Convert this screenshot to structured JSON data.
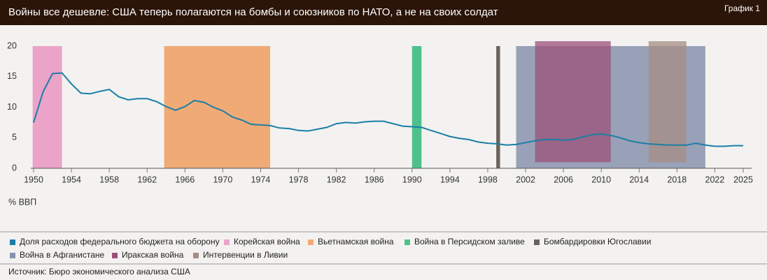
{
  "chart_data": {
    "type": "line",
    "title": "Войны все дешевле: США теперь полагаются на бомбы и союзников по НАТО, а не на своих солдат",
    "badge": "График 1",
    "y_label": "% ВВП",
    "source": "Источник: Бюро экономического анализа США",
    "xlim": [
      1950,
      2025
    ],
    "ylim": [
      0,
      20
    ],
    "xticks": [
      1950,
      1954,
      1958,
      1962,
      1966,
      1970,
      1974,
      1978,
      1982,
      1986,
      1990,
      1994,
      1998,
      2002,
      2006,
      2010,
      2014,
      2018,
      2022,
      2025
    ],
    "yticks": [
      0,
      5,
      10,
      15,
      20
    ],
    "series": [
      {
        "name": "Доля расходов федерального бюджета на оборону",
        "color": "#1b7ea6",
        "x": [
          1950,
          1951,
          1952,
          1953,
          1954,
          1955,
          1956,
          1957,
          1958,
          1959,
          1960,
          1961,
          1962,
          1963,
          1964,
          1965,
          1966,
          1967,
          1968,
          1969,
          1970,
          1971,
          1972,
          1973,
          1974,
          1975,
          1976,
          1977,
          1978,
          1979,
          1980,
          1981,
          1982,
          1983,
          1984,
          1985,
          1986,
          1987,
          1988,
          1989,
          1990,
          1991,
          1992,
          1993,
          1994,
          1995,
          1996,
          1997,
          1998,
          1999,
          2000,
          2001,
          2002,
          2003,
          2004,
          2005,
          2006,
          2007,
          2008,
          2009,
          2010,
          2011,
          2012,
          2013,
          2014,
          2015,
          2016,
          2017,
          2018,
          2019,
          2020,
          2021,
          2022,
          2023,
          2024,
          2025
        ],
        "values": [
          7.5,
          12.5,
          15.5,
          15.6,
          13.8,
          12.3,
          12.2,
          12.6,
          12.9,
          11.7,
          11.2,
          11.4,
          11.4,
          10.9,
          10.1,
          9.5,
          10.1,
          11.1,
          10.8,
          10.0,
          9.4,
          8.4,
          7.9,
          7.2,
          7.1,
          7.0,
          6.6,
          6.5,
          6.2,
          6.1,
          6.4,
          6.7,
          7.3,
          7.5,
          7.4,
          7.6,
          7.7,
          7.7,
          7.3,
          6.9,
          6.8,
          6.7,
          6.2,
          5.7,
          5.2,
          4.9,
          4.7,
          4.3,
          4.1,
          4.0,
          3.8,
          3.9,
          4.2,
          4.5,
          4.7,
          4.7,
          4.6,
          4.7,
          5.1,
          5.5,
          5.6,
          5.4,
          5.0,
          4.5,
          4.2,
          4.0,
          3.9,
          3.8,
          3.8,
          3.8,
          4.1,
          3.8,
          3.6,
          3.6,
          3.7,
          3.7
        ]
      }
    ],
    "regions": [
      {
        "name": "Корейская война",
        "color": "#eba3c8",
        "x": [
          1949.9,
          1953
        ],
        "y": [
          0,
          20
        ]
      },
      {
        "name": "Вьетнамская война",
        "color": "#f0aa76",
        "x": [
          1963.8,
          1975
        ],
        "y": [
          0,
          20
        ]
      },
      {
        "name": "Война в Персидском заливе",
        "color": "#4fc08c",
        "x": [
          1990,
          1991
        ],
        "y": [
          0,
          20
        ]
      },
      {
        "name": "Бомбардировки Югославии",
        "color": "#6b625c",
        "x": [
          1998.9,
          1999.3
        ],
        "y": [
          0,
          20
        ]
      },
      {
        "name": "Война в Афганистане",
        "color": "#8793ad",
        "x": [
          2001,
          2021
        ],
        "y": [
          0,
          20
        ]
      },
      {
        "name": "Иракская война",
        "color": "#9c5079",
        "x": [
          2003,
          2011
        ],
        "y": [
          1,
          20.8
        ]
      },
      {
        "name": "Интервенции в Ливии",
        "color": "#a58d84",
        "x": [
          2015,
          2019
        ],
        "y": [
          1,
          20.8
        ]
      }
    ]
  }
}
